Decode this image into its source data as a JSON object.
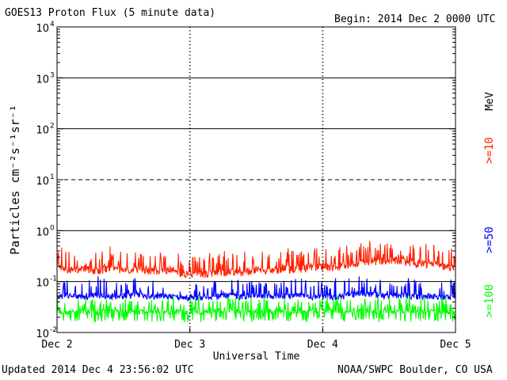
{
  "header": {
    "title": "GOES13 Proton Flux (5 minute data)",
    "begin": "Begin: 2014 Dec 2 0000 UTC"
  },
  "footer": {
    "updated": "Updated 2014 Dec  4 23:56:02 UTC",
    "credit": "NOAA/SWPC Boulder, CO USA"
  },
  "chart_data": {
    "type": "line",
    "title": "GOES13 Proton Flux (5 minute data)",
    "xlabel": "Universal Time",
    "ylabel": "Particles cm⁻²s⁻¹sr⁻¹",
    "yscale": "log",
    "ylim": [
      0.01,
      10000
    ],
    "xlim": [
      0,
      3
    ],
    "x_unit": "days since 2014 Dec 2 0000 UTC",
    "x_ticks": [
      {
        "x": 0,
        "label": "Dec 2"
      },
      {
        "x": 1,
        "label": "Dec 3"
      },
      {
        "x": 2,
        "label": "Dec 4"
      },
      {
        "x": 3,
        "label": "Dec 5"
      }
    ],
    "y_ticks": [
      {
        "value": 0.01,
        "base": "10",
        "exp": "-2"
      },
      {
        "value": 0.1,
        "base": "10",
        "exp": "-1"
      },
      {
        "value": 1,
        "base": "10",
        "exp": "0"
      },
      {
        "value": 10,
        "base": "10",
        "exp": "1"
      },
      {
        "value": 100,
        "base": "10",
        "exp": "2"
      },
      {
        "value": 1000,
        "base": "10",
        "exp": "3"
      },
      {
        "value": 10000,
        "base": "10",
        "exp": "4"
      }
    ],
    "hlines": [
      {
        "value": 1000,
        "style": "solid"
      },
      {
        "value": 100,
        "style": "solid"
      },
      {
        "value": 10,
        "style": "dashed"
      },
      {
        "value": 1,
        "style": "solid"
      },
      {
        "value": 0.1,
        "style": "solid"
      }
    ],
    "day_markers": [
      1,
      2
    ],
    "legend_unit": "MeV",
    "series": [
      {
        "name": ">=10",
        "color": "#ff2000",
        "x": [
          0,
          0.1,
          0.2,
          0.3,
          0.4,
          0.5,
          0.6,
          0.7,
          0.8,
          0.9,
          1.0,
          1.1,
          1.2,
          1.3,
          1.4,
          1.5,
          1.6,
          1.7,
          1.8,
          1.9,
          2.0,
          2.1,
          2.2,
          2.3,
          2.4,
          2.5,
          2.6,
          2.7,
          2.8,
          2.9,
          3.0
        ],
        "y": [
          0.2,
          0.17,
          0.18,
          0.16,
          0.19,
          0.17,
          0.18,
          0.16,
          0.17,
          0.15,
          0.14,
          0.14,
          0.15,
          0.16,
          0.15,
          0.17,
          0.16,
          0.18,
          0.17,
          0.19,
          0.2,
          0.19,
          0.22,
          0.24,
          0.25,
          0.27,
          0.25,
          0.23,
          0.22,
          0.2,
          0.19
        ]
      },
      {
        "name": ">=50",
        "color": "#0000ff",
        "x": [
          0,
          0.1,
          0.2,
          0.3,
          0.4,
          0.5,
          0.6,
          0.7,
          0.8,
          0.9,
          1.0,
          1.1,
          1.2,
          1.3,
          1.4,
          1.5,
          1.6,
          1.7,
          1.8,
          1.9,
          2.0,
          2.1,
          2.2,
          2.3,
          2.4,
          2.5,
          2.6,
          2.7,
          2.8,
          2.9,
          3.0
        ],
        "y": [
          0.05,
          0.055,
          0.05,
          0.055,
          0.05,
          0.052,
          0.055,
          0.05,
          0.052,
          0.05,
          0.048,
          0.05,
          0.052,
          0.055,
          0.05,
          0.055,
          0.052,
          0.05,
          0.055,
          0.05,
          0.052,
          0.05,
          0.055,
          0.06,
          0.055,
          0.052,
          0.055,
          0.05,
          0.052,
          0.05,
          0.05
        ]
      },
      {
        "name": ">=100",
        "color": "#00ff00",
        "x": [
          0,
          0.1,
          0.2,
          0.3,
          0.4,
          0.5,
          0.6,
          0.7,
          0.8,
          0.9,
          1.0,
          1.1,
          1.2,
          1.3,
          1.4,
          1.5,
          1.6,
          1.7,
          1.8,
          1.9,
          2.0,
          2.1,
          2.2,
          2.3,
          2.4,
          2.5,
          2.6,
          2.7,
          2.8,
          2.9,
          3.0
        ],
        "y": [
          0.025,
          0.025,
          0.026,
          0.025,
          0.027,
          0.026,
          0.025,
          0.026,
          0.025,
          0.026,
          0.024,
          0.025,
          0.026,
          0.027,
          0.026,
          0.025,
          0.027,
          0.026,
          0.025,
          0.026,
          0.027,
          0.026,
          0.025,
          0.027,
          0.026,
          0.025,
          0.026,
          0.025,
          0.026,
          0.025,
          0.025
        ]
      }
    ]
  }
}
